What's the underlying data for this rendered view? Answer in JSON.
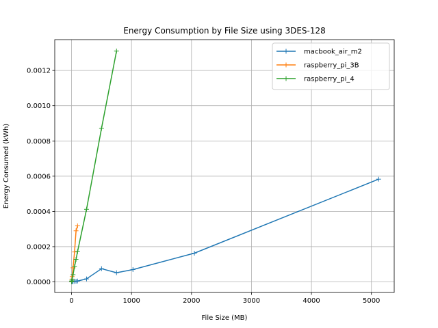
{
  "chart_data": {
    "type": "line",
    "title": "Energy Consumption by File Size using 3DES-128",
    "xlabel": "File Size (MB)",
    "ylabel": "Energy Consumed (kWh)",
    "xlim": [
      -280,
      5380
    ],
    "ylim": [
      -6e-05,
      0.001375
    ],
    "xticks": [
      0,
      1000,
      2000,
      3000,
      4000,
      5000
    ],
    "xtick_labels": [
      "0",
      "1000",
      "2000",
      "3000",
      "4000",
      "5000"
    ],
    "yticks": [
      0.0,
      0.0002,
      0.0004,
      0.0006,
      0.0008,
      0.001,
      0.0012
    ],
    "ytick_labels": [
      "0.0000",
      "0.0002",
      "0.0004",
      "0.0006",
      "0.0008",
      "0.0010",
      "0.0012"
    ],
    "grid": true,
    "legend_position": "top-right",
    "marker": "plus",
    "series": [
      {
        "name": "macbook_air_m2",
        "color": "#1f77b4",
        "x": [
          1,
          5,
          10,
          25,
          50,
          75,
          100,
          250,
          500,
          750,
          1024,
          2048,
          5120
        ],
        "y": [
          2e-07,
          5e-07,
          1e-06,
          2e-06,
          3e-06,
          4e-06,
          5e-06,
          1.7e-05,
          7.5e-05,
          5.2e-05,
          7e-05,
          0.000163,
          0.000583
        ]
      },
      {
        "name": "raspberry_pi_3B",
        "color": "#ff7f0e",
        "x": [
          1,
          5,
          10,
          25,
          50,
          75,
          100
        ],
        "y": [
          3e-06,
          1.5e-05,
          3e-05,
          8e-05,
          0.00017,
          0.00029,
          0.000318
        ]
      },
      {
        "name": "raspberry_pi_4",
        "color": "#2ca02c",
        "x": [
          1,
          5,
          10,
          25,
          50,
          75,
          100,
          250,
          500,
          750
        ],
        "y": [
          1.3e-06,
          6e-06,
          1.6e-05,
          4.1e-05,
          8.8e-05,
          0.000128,
          0.000172,
          0.000412,
          0.000872,
          0.00131
        ]
      }
    ]
  }
}
